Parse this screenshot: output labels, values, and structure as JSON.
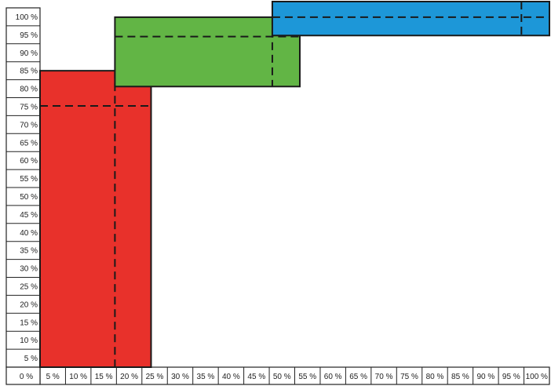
{
  "chart_data": {
    "type": "area",
    "title": "",
    "xlabel": "",
    "ylabel": "",
    "x_ticks": [
      "0 %",
      "5 %",
      "10 %",
      "15 %",
      "20 %",
      "25 %",
      "30 %",
      "35 %",
      "40 %",
      "45 %",
      "50 %",
      "55 %",
      "60 %",
      "65 %",
      "70 %",
      "75 %",
      "80 %",
      "85 %",
      "90 %",
      "95 %",
      "100 %"
    ],
    "y_ticks": [
      "100 %",
      "95 %",
      "90 %",
      "85 %",
      "80 %",
      "75 %",
      "70 %",
      "65 %",
      "60 %",
      "55 %",
      "50 %",
      "45 %",
      "40 %",
      "35 %",
      "30 %",
      "25 %",
      "20 %",
      "15 %",
      "10 %",
      "5 %"
    ],
    "xlim": [
      0,
      100
    ],
    "ylim": [
      0,
      100
    ],
    "rectangles": [
      {
        "color": "#e8312b",
        "x_start": 0,
        "x_end": 21.8,
        "y_low": 0,
        "y_high": 82.5,
        "line_y": 72.7,
        "line_x": 14.7
      },
      {
        "color": "#62b545",
        "x_start": 14.7,
        "x_end": 51,
        "y_low": 78.1,
        "y_high": 97.4,
        "line_y": 92,
        "line_x": 45.6
      },
      {
        "color": "#1d97d8",
        "x_start": 45.6,
        "x_end": 100,
        "y_low": 92.3,
        "y_high": 102.5,
        "line_y": 97.4,
        "line_x": 94.5
      }
    ]
  }
}
